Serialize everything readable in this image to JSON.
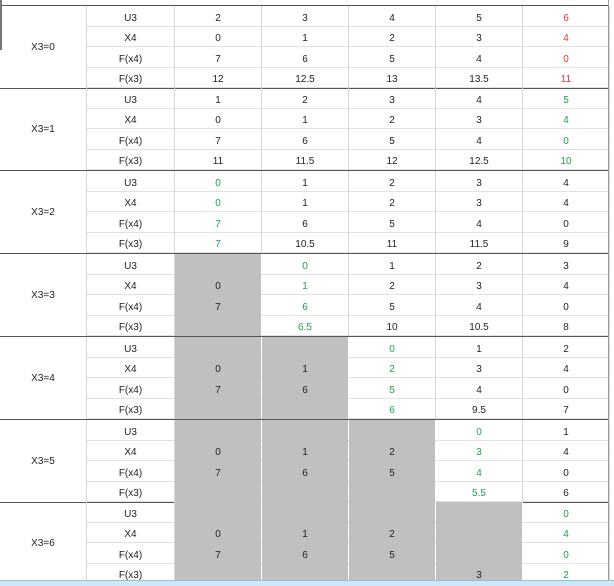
{
  "colors": {
    "red": "#e53935",
    "green": "#1aa34a",
    "shaded": "#c0c0c0"
  },
  "blocks": [
    {
      "label": "X3=0",
      "rows": [
        {
          "name": "U3",
          "cells": [
            {
              "v": "2"
            },
            {
              "v": "3"
            },
            {
              "v": "4"
            },
            {
              "v": "5"
            },
            {
              "v": "6",
              "c": "red"
            }
          ]
        },
        {
          "name": "X4",
          "cells": [
            {
              "v": "0"
            },
            {
              "v": "1"
            },
            {
              "v": "2"
            },
            {
              "v": "3"
            },
            {
              "v": "4",
              "c": "red"
            }
          ]
        },
        {
          "name": "F(x4)",
          "cells": [
            {
              "v": "7"
            },
            {
              "v": "6"
            },
            {
              "v": "5"
            },
            {
              "v": "4"
            },
            {
              "v": "0",
              "c": "red"
            }
          ]
        },
        {
          "name": "F(x3)",
          "cells": [
            {
              "v": "12"
            },
            {
              "v": "12.5"
            },
            {
              "v": "13"
            },
            {
              "v": "13.5"
            },
            {
              "v": "11",
              "c": "red"
            }
          ]
        }
      ]
    },
    {
      "label": "X3=1",
      "rows": [
        {
          "name": "U3",
          "cells": [
            {
              "v": "1"
            },
            {
              "v": "2"
            },
            {
              "v": "3"
            },
            {
              "v": "4"
            },
            {
              "v": "5",
              "c": "green"
            }
          ]
        },
        {
          "name": "X4",
          "cells": [
            {
              "v": "0"
            },
            {
              "v": "1"
            },
            {
              "v": "2"
            },
            {
              "v": "3"
            },
            {
              "v": "4",
              "c": "green"
            }
          ]
        },
        {
          "name": "F(x4)",
          "cells": [
            {
              "v": "7"
            },
            {
              "v": "6"
            },
            {
              "v": "5"
            },
            {
              "v": "4"
            },
            {
              "v": "0",
              "c": "green"
            }
          ]
        },
        {
          "name": "F(x3)",
          "cells": [
            {
              "v": "11"
            },
            {
              "v": "11.5"
            },
            {
              "v": "12"
            },
            {
              "v": "12.5"
            },
            {
              "v": "10",
              "c": "green"
            }
          ]
        }
      ]
    },
    {
      "label": "X3=2",
      "rows": [
        {
          "name": "U3",
          "cells": [
            {
              "v": "0",
              "c": "green"
            },
            {
              "v": "1"
            },
            {
              "v": "2"
            },
            {
              "v": "3"
            },
            {
              "v": "4"
            }
          ]
        },
        {
          "name": "X4",
          "cells": [
            {
              "v": "0",
              "c": "green"
            },
            {
              "v": "1"
            },
            {
              "v": "2"
            },
            {
              "v": "3"
            },
            {
              "v": "4"
            }
          ]
        },
        {
          "name": "F(x4)",
          "cells": [
            {
              "v": "7",
              "c": "green"
            },
            {
              "v": "6"
            },
            {
              "v": "5"
            },
            {
              "v": "4"
            },
            {
              "v": "0"
            }
          ]
        },
        {
          "name": "F(x3)",
          "cells": [
            {
              "v": "7",
              "c": "green"
            },
            {
              "v": "10.5"
            },
            {
              "v": "11"
            },
            {
              "v": "11.5"
            },
            {
              "v": "9"
            }
          ]
        }
      ]
    },
    {
      "label": "X3=3",
      "rows": [
        {
          "name": "U3",
          "cells": [
            {
              "v": "",
              "g": true
            },
            {
              "v": "0",
              "c": "green"
            },
            {
              "v": "1"
            },
            {
              "v": "2"
            },
            {
              "v": "3"
            }
          ]
        },
        {
          "name": "X4",
          "cells": [
            {
              "v": "0",
              "g": true
            },
            {
              "v": "1",
              "c": "green"
            },
            {
              "v": "2"
            },
            {
              "v": "3"
            },
            {
              "v": "4"
            }
          ]
        },
        {
          "name": "F(x4)",
          "cells": [
            {
              "v": "7",
              "g": true
            },
            {
              "v": "6",
              "c": "green"
            },
            {
              "v": "5"
            },
            {
              "v": "4"
            },
            {
              "v": "0"
            }
          ]
        },
        {
          "name": "F(x3)",
          "cells": [
            {
              "v": "",
              "g": true
            },
            {
              "v": "6.5",
              "c": "green"
            },
            {
              "v": "10"
            },
            {
              "v": "10.5"
            },
            {
              "v": "8"
            }
          ]
        }
      ]
    },
    {
      "label": "X3=4",
      "rows": [
        {
          "name": "U3",
          "cells": [
            {
              "v": "",
              "g": true
            },
            {
              "v": "",
              "g": true
            },
            {
              "v": "0",
              "c": "green"
            },
            {
              "v": "1"
            },
            {
              "v": "2"
            }
          ]
        },
        {
          "name": "X4",
          "cells": [
            {
              "v": "0",
              "g": true
            },
            {
              "v": "1",
              "g": true
            },
            {
              "v": "2",
              "c": "green"
            },
            {
              "v": "3"
            },
            {
              "v": "4"
            }
          ]
        },
        {
          "name": "F(x4)",
          "cells": [
            {
              "v": "7",
              "g": true
            },
            {
              "v": "6",
              "g": true
            },
            {
              "v": "5",
              "c": "green"
            },
            {
              "v": "4"
            },
            {
              "v": "0"
            }
          ]
        },
        {
          "name": "F(x3)",
          "cells": [
            {
              "v": "",
              "g": true
            },
            {
              "v": "",
              "g": true
            },
            {
              "v": "6",
              "c": "green"
            },
            {
              "v": "9.5"
            },
            {
              "v": "7"
            }
          ]
        }
      ]
    },
    {
      "label": "X3=5",
      "rows": [
        {
          "name": "U3",
          "cells": [
            {
              "v": "",
              "g": true
            },
            {
              "v": "",
              "g": true
            },
            {
              "v": "",
              "g": true
            },
            {
              "v": "0",
              "c": "green"
            },
            {
              "v": "1"
            }
          ]
        },
        {
          "name": "X4",
          "cells": [
            {
              "v": "0",
              "g": true
            },
            {
              "v": "1",
              "g": true
            },
            {
              "v": "2",
              "g": true
            },
            {
              "v": "3",
              "c": "green"
            },
            {
              "v": "4"
            }
          ]
        },
        {
          "name": "F(x4)",
          "cells": [
            {
              "v": "7",
              "g": true
            },
            {
              "v": "6",
              "g": true
            },
            {
              "v": "5",
              "g": true
            },
            {
              "v": "4",
              "c": "green"
            },
            {
              "v": "0"
            }
          ]
        },
        {
          "name": "F(x3)",
          "cells": [
            {
              "v": "",
              "g": true
            },
            {
              "v": "",
              "g": true
            },
            {
              "v": "",
              "g": true
            },
            {
              "v": "5.5",
              "c": "green"
            },
            {
              "v": "6"
            }
          ]
        }
      ]
    },
    {
      "label": "X3=6",
      "rows": [
        {
          "name": "U3",
          "cells": [
            {
              "v": "",
              "g": true
            },
            {
              "v": "",
              "g": true
            },
            {
              "v": "",
              "g": true
            },
            {
              "v": "",
              "g": true
            },
            {
              "v": "0",
              "c": "green"
            }
          ]
        },
        {
          "name": "X4",
          "cells": [
            {
              "v": "0",
              "g": true
            },
            {
              "v": "1",
              "g": true
            },
            {
              "v": "2",
              "g": true
            },
            {
              "v": "",
              "g": true
            },
            {
              "v": "4",
              "c": "green"
            }
          ]
        },
        {
          "name": "F(x4)",
          "cells": [
            {
              "v": "7",
              "g": true
            },
            {
              "v": "6",
              "g": true
            },
            {
              "v": "5",
              "g": true
            },
            {
              "v": "",
              "g": true
            },
            {
              "v": "0",
              "c": "green"
            }
          ]
        },
        {
          "name": "F(x3)",
          "cells": [
            {
              "v": "",
              "g": true
            },
            {
              "v": "",
              "g": true
            },
            {
              "v": "",
              "g": true
            },
            {
              "v": "3",
              "g": true
            },
            {
              "v": "2",
              "c": "green"
            }
          ]
        }
      ]
    }
  ]
}
